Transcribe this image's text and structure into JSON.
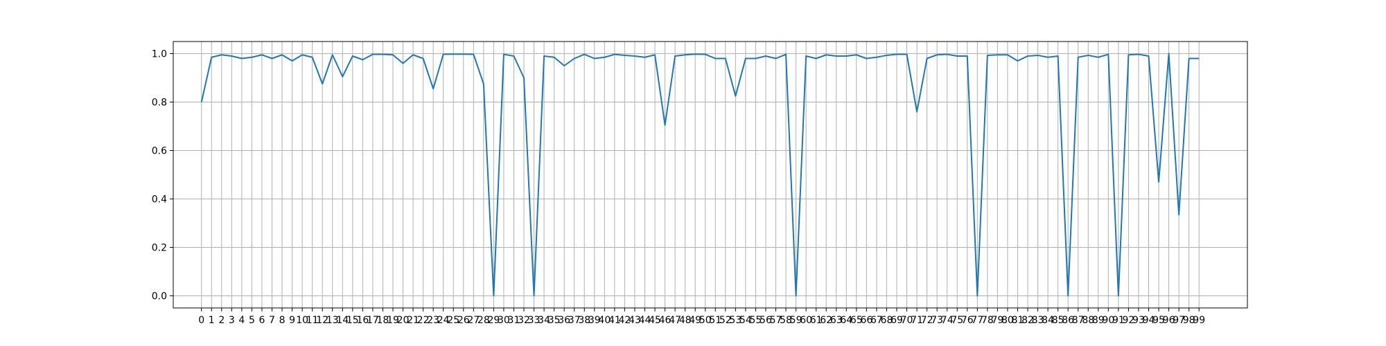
{
  "chart_data": {
    "type": "line",
    "title": "",
    "xlabel": "",
    "ylabel": "",
    "grid": true,
    "line_color": "#1f77b4",
    "xlim": [
      -2.8,
      103.8
    ],
    "ylim": [
      -0.05,
      1.05
    ],
    "x_ticks": [
      0,
      1,
      2,
      3,
      4,
      5,
      6,
      7,
      8,
      9,
      10,
      11,
      12,
      13,
      14,
      15,
      16,
      17,
      18,
      19,
      20,
      21,
      22,
      23,
      24,
      25,
      26,
      27,
      28,
      29,
      30,
      31,
      32,
      33,
      34,
      35,
      36,
      37,
      38,
      39,
      40,
      41,
      42,
      43,
      44,
      45,
      46,
      47,
      48,
      49,
      50,
      51,
      52,
      53,
      54,
      55,
      56,
      57,
      58,
      59,
      60,
      61,
      62,
      63,
      64,
      65,
      66,
      67,
      68,
      69,
      70,
      71,
      72,
      73,
      74,
      75,
      76,
      77,
      78,
      79,
      80,
      81,
      82,
      83,
      84,
      85,
      86,
      87,
      88,
      89,
      90,
      91,
      92,
      93,
      94,
      95,
      96,
      97,
      98,
      99
    ],
    "x_tick_labels": [
      "0",
      "1",
      "2",
      "3",
      "4",
      "5",
      "6",
      "7",
      "8",
      "9",
      "10",
      "11",
      "12",
      "13",
      "14",
      "15",
      "16",
      "17",
      "18",
      "19",
      "20",
      "21",
      "22",
      "23",
      "24",
      "25",
      "26",
      "27",
      "28",
      "29",
      "30",
      "31",
      "32",
      "33",
      "34",
      "35",
      "36",
      "37",
      "38",
      "39",
      "40",
      "41",
      "42",
      "43",
      "44",
      "45",
      "46",
      "47",
      "48",
      "49",
      "50",
      "51",
      "52",
      "53",
      "54",
      "55",
      "56",
      "57",
      "58",
      "59",
      "60",
      "61",
      "62",
      "63",
      "64",
      "65",
      "66",
      "67",
      "68",
      "69",
      "70",
      "71",
      "72",
      "73",
      "74",
      "75",
      "76",
      "77",
      "78",
      "79",
      "80",
      "81",
      "82",
      "83",
      "84",
      "85",
      "86",
      "87",
      "88",
      "89",
      "90",
      "91",
      "92",
      "93",
      "94",
      "95",
      "96",
      "97",
      "98",
      "99"
    ],
    "y_ticks": [
      0.0,
      0.2,
      0.4,
      0.6,
      0.8,
      1.0
    ],
    "y_tick_labels": [
      "0.0",
      "0.2",
      "0.4",
      "0.6",
      "0.8",
      "1.0"
    ],
    "x": [
      0,
      1,
      2,
      3,
      4,
      5,
      6,
      7,
      8,
      9,
      10,
      11,
      12,
      13,
      14,
      15,
      16,
      17,
      18,
      19,
      20,
      21,
      22,
      23,
      24,
      25,
      26,
      27,
      28,
      29,
      30,
      31,
      32,
      33,
      34,
      35,
      36,
      37,
      38,
      39,
      40,
      41,
      42,
      43,
      44,
      45,
      46,
      47,
      48,
      49,
      50,
      51,
      52,
      53,
      54,
      55,
      56,
      57,
      58,
      59,
      60,
      61,
      62,
      63,
      64,
      65,
      66,
      67,
      68,
      69,
      70,
      71,
      72,
      73,
      74,
      75,
      76,
      77,
      78,
      79,
      80,
      81,
      82,
      83,
      84,
      85,
      86,
      87,
      88,
      89,
      90,
      91,
      92,
      93,
      94,
      95,
      96,
      97,
      98,
      99
    ],
    "values": [
      0.8,
      0.985,
      0.995,
      0.99,
      0.98,
      0.985,
      0.995,
      0.98,
      0.995,
      0.97,
      0.995,
      0.985,
      0.875,
      0.995,
      0.905,
      0.99,
      0.975,
      0.997,
      0.997,
      0.995,
      0.96,
      0.995,
      0.98,
      0.855,
      0.997,
      0.998,
      0.998,
      0.997,
      0.875,
      0.0,
      0.997,
      0.99,
      0.9,
      0.0,
      0.99,
      0.985,
      0.95,
      0.98,
      0.997,
      0.98,
      0.985,
      0.997,
      0.993,
      0.99,
      0.985,
      0.995,
      0.705,
      0.99,
      0.995,
      0.998,
      0.997,
      0.98,
      0.98,
      0.825,
      0.98,
      0.98,
      0.99,
      0.98,
      0.997,
      0.0,
      0.99,
      0.98,
      0.995,
      0.99,
      0.99,
      0.995,
      0.98,
      0.985,
      0.993,
      0.997,
      0.997,
      0.76,
      0.98,
      0.995,
      0.997,
      0.99,
      0.99,
      0.0,
      0.993,
      0.995,
      0.995,
      0.97,
      0.99,
      0.993,
      0.985,
      0.99,
      0.0,
      0.985,
      0.993,
      0.985,
      0.997,
      0.0,
      0.995,
      0.997,
      0.99,
      0.47,
      1.0,
      0.335,
      0.98,
      0.98
    ]
  }
}
